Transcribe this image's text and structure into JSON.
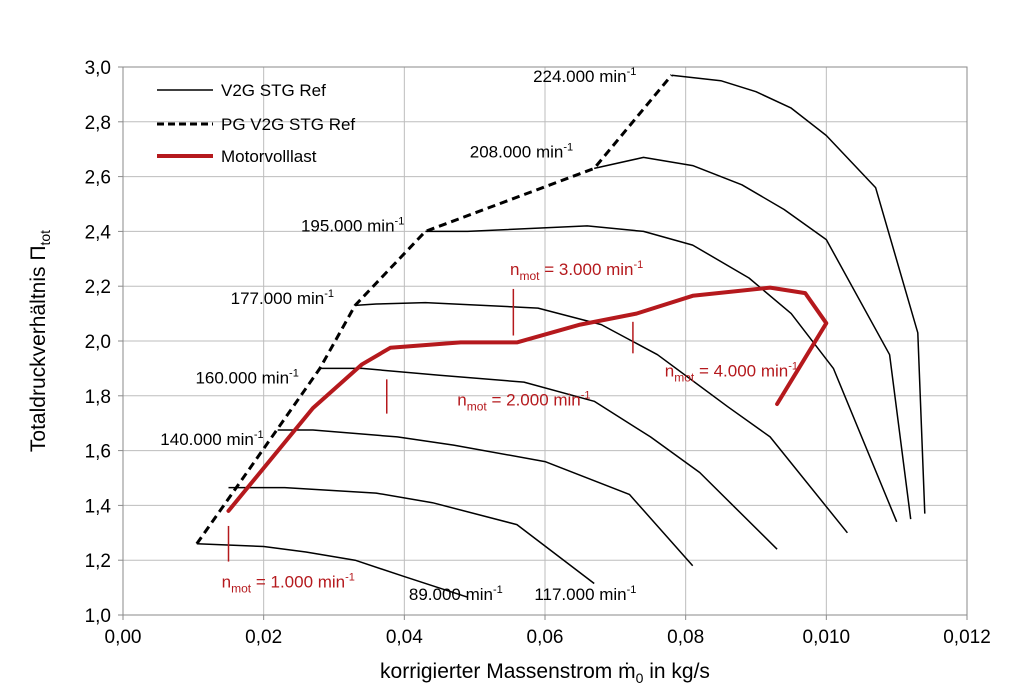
{
  "chart_data": {
    "type": "line",
    "xlabel_pre": "korrigierter Massenstrom ",
    "xlabel_symbol": "ṁ",
    "xlabel_sub": "0",
    "xlabel_post": " in kg/s",
    "ylabel_pre": "Totaldruckverhältnis Π",
    "ylabel_sub": "tot",
    "xlim": [
      0,
      0.012
    ],
    "ylim": [
      1.0,
      3.0
    ],
    "x_ticks": [
      "0,00",
      "0,02",
      "0,04",
      "0,06",
      "0,08",
      "0,010",
      "0,012"
    ],
    "y_ticks": [
      "1,0",
      "1,2",
      "1,4",
      "1,6",
      "1,8",
      "2,0",
      "2,2",
      "2,4",
      "2,6",
      "2,8",
      "3,0"
    ],
    "grid": true,
    "legend_position": "top-left",
    "legend": [
      {
        "label": "V2G STG Ref",
        "style": "solid",
        "color": "#000000"
      },
      {
        "label": "PG V2G STG Ref",
        "style": "dashed",
        "color": "#000000"
      },
      {
        "label": "Motorvolllast",
        "style": "thick",
        "color": "#b5191d"
      }
    ],
    "speed_lines": [
      {
        "name": "89.000 min-1",
        "label_num": "89.000 min",
        "points": [
          [
            0.00105,
            1.26
          ],
          [
            0.002,
            1.25
          ],
          [
            0.0026,
            1.23
          ],
          [
            0.0033,
            1.2
          ],
          [
            0.004,
            1.14
          ],
          [
            0.0049,
            1.065
          ]
        ]
      },
      {
        "name": "117.000 min-1",
        "label_num": "117.000 min",
        "points": [
          [
            0.0015,
            1.465
          ],
          [
            0.0023,
            1.465
          ],
          [
            0.0036,
            1.445
          ],
          [
            0.0044,
            1.41
          ],
          [
            0.0056,
            1.33
          ],
          [
            0.0067,
            1.115
          ]
        ]
      },
      {
        "name": "140.000 min-1",
        "label_num": "140.000 min",
        "points": [
          [
            0.0022,
            1.675
          ],
          [
            0.0027,
            1.675
          ],
          [
            0.0039,
            1.65
          ],
          [
            0.0047,
            1.62
          ],
          [
            0.006,
            1.56
          ],
          [
            0.0072,
            1.44
          ],
          [
            0.0081,
            1.18
          ]
        ]
      },
      {
        "name": "160.000 min-1",
        "label_num": "160.000 min",
        "points": [
          [
            0.0028,
            1.9
          ],
          [
            0.0034,
            1.9
          ],
          [
            0.0045,
            1.875
          ],
          [
            0.0057,
            1.85
          ],
          [
            0.0067,
            1.78
          ],
          [
            0.0075,
            1.65
          ],
          [
            0.0082,
            1.52
          ],
          [
            0.0093,
            1.24
          ]
        ]
      },
      {
        "name": "177.000 min-1",
        "label_num": "177.000 min",
        "points": [
          [
            0.0033,
            2.13
          ],
          [
            0.0036,
            2.135
          ],
          [
            0.0043,
            2.14
          ],
          [
            0.0059,
            2.12
          ],
          [
            0.0068,
            2.06
          ],
          [
            0.0076,
            1.95
          ],
          [
            0.0086,
            1.76
          ],
          [
            0.0092,
            1.65
          ],
          [
            0.0103,
            1.3
          ]
        ]
      },
      {
        "name": "195.000 min-1",
        "label_num": "195.000 min",
        "points": [
          [
            0.0043,
            2.4
          ],
          [
            0.0049,
            2.4
          ],
          [
            0.0066,
            2.42
          ],
          [
            0.0074,
            2.4
          ],
          [
            0.0081,
            2.35
          ],
          [
            0.0089,
            2.23
          ],
          [
            0.0095,
            2.1
          ],
          [
            0.0101,
            1.9
          ],
          [
            0.011,
            1.34
          ]
        ]
      },
      {
        "name": "208.000 min-1",
        "label_num": "208.000 min",
        "points": [
          [
            0.0067,
            2.63
          ],
          [
            0.0074,
            2.67
          ],
          [
            0.0081,
            2.64
          ],
          [
            0.0088,
            2.57
          ],
          [
            0.0094,
            2.48
          ],
          [
            0.01,
            2.37
          ],
          [
            0.0109,
            1.95
          ],
          [
            0.0112,
            1.35
          ]
        ]
      },
      {
        "name": "224.000 min-1",
        "label_num": "224.000 min",
        "points": [
          [
            0.0078,
            2.97
          ],
          [
            0.0085,
            2.95
          ],
          [
            0.009,
            2.91
          ],
          [
            0.0095,
            2.85
          ],
          [
            0.01,
            2.75
          ],
          [
            0.0107,
            2.56
          ],
          [
            0.0113,
            2.03
          ],
          [
            0.0114,
            1.37
          ]
        ]
      }
    ],
    "surge_line": {
      "name": "PG V2G STG Ref",
      "points": [
        [
          0.00105,
          1.26
        ],
        [
          0.0022,
          1.68
        ],
        [
          0.0028,
          1.9
        ],
        [
          0.0033,
          2.13
        ],
        [
          0.0043,
          2.4
        ],
        [
          0.0067,
          2.63
        ],
        [
          0.0078,
          2.97
        ]
      ]
    },
    "full_load": {
      "name": "Motorvolllast",
      "points": [
        [
          0.0015,
          1.38
        ],
        [
          0.0027,
          1.755
        ],
        [
          0.0034,
          1.915
        ],
        [
          0.0038,
          1.975
        ],
        [
          0.0048,
          1.995
        ],
        [
          0.0056,
          1.995
        ],
        [
          0.0065,
          2.06
        ],
        [
          0.0073,
          2.1
        ],
        [
          0.0081,
          2.165
        ],
        [
          0.0092,
          2.195
        ],
        [
          0.0097,
          2.175
        ],
        [
          0.01,
          2.065
        ],
        [
          0.0093,
          1.77
        ]
      ]
    },
    "speed_labels": [
      {
        "text": "89.000 min",
        "sup": "-1",
        "x": 0.0054,
        "y": 1.055
      },
      {
        "text": "117.000 min",
        "sup": "-1",
        "x": 0.0073,
        "y": 1.055
      },
      {
        "text": "140.000 min",
        "sup": "-1",
        "x": 0.002,
        "y": 1.62
      },
      {
        "text": "160.000 min",
        "sup": "-1",
        "x": 0.0025,
        "y": 1.845
      },
      {
        "text": "177.000 min",
        "sup": "-1",
        "x": 0.003,
        "y": 2.135
      },
      {
        "text": "195.000 min",
        "sup": "-1",
        "x": 0.004,
        "y": 2.4
      },
      {
        "text": "208.000 min",
        "sup": "-1",
        "x": 0.0064,
        "y": 2.67
      },
      {
        "text": "224.000 min",
        "sup": "-1",
        "x": 0.0073,
        "y": 2.945
      }
    ],
    "annotations": [
      {
        "pre": "n",
        "sub": "mot",
        "text": " = 1.000 min",
        "sup": "-1",
        "x": 0.00235,
        "y": 1.1,
        "tick": [
          [
            0.0015,
            1.325
          ],
          [
            0.0015,
            1.195
          ]
        ]
      },
      {
        "pre": "n",
        "sub": "mot",
        "text": " = 2.000 min",
        "sup": "-1",
        "x": 0.0057,
        "y": 1.765,
        "tick": [
          [
            0.00375,
            1.86
          ],
          [
            0.00375,
            1.735
          ]
        ]
      },
      {
        "pre": "n",
        "sub": "mot",
        "text": " = 3.000 min",
        "sup": "-1",
        "x": 0.00645,
        "y": 2.24,
        "tick": [
          [
            0.00555,
            2.19
          ],
          [
            0.00555,
            2.02
          ]
        ]
      },
      {
        "pre": "n",
        "sub": "mot",
        "text": " = 4.000 min",
        "sup": "-1",
        "x": 0.00865,
        "y": 1.87,
        "tick": [
          [
            0.00725,
            2.07
          ],
          [
            0.00725,
            1.955
          ]
        ]
      }
    ]
  }
}
